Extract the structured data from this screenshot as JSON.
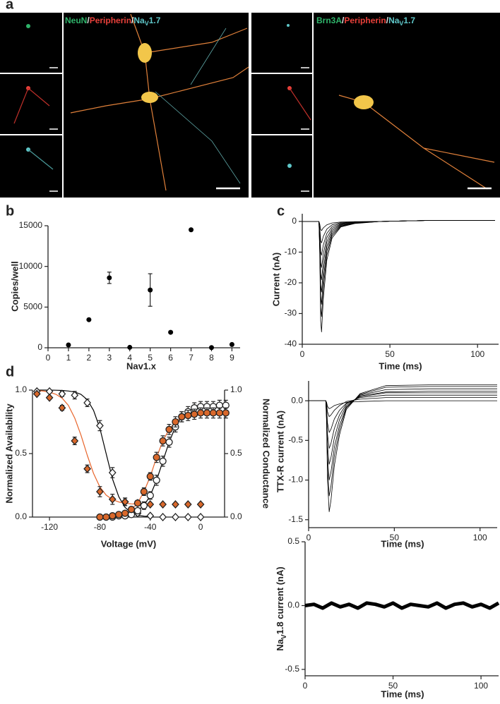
{
  "panels": [
    "a",
    "b",
    "c",
    "d"
  ],
  "panel_a": {
    "titles": [
      [
        "NeuN",
        "/",
        "Peripherin",
        "/",
        "Na",
        "V",
        "1.7"
      ],
      [
        "Brn3A",
        "/",
        "Peripherin",
        "/",
        "Na",
        "V",
        "1.7"
      ]
    ]
  },
  "chart_data": [
    {
      "type": "scatter",
      "xlabel": "Nav1.x",
      "ylabel": "Copies/well",
      "color": "#000000",
      "x": [
        1,
        2,
        3,
        4,
        5,
        6,
        7,
        8,
        9
      ],
      "values": [
        350,
        3450,
        8600,
        50,
        7100,
        1900,
        14500,
        20,
        400
      ],
      "errors": [
        null,
        null,
        700,
        null,
        2000,
        null,
        null,
        null,
        null
      ],
      "xlim": [
        0,
        9.4
      ],
      "ylim": [
        0,
        15000
      ],
      "xticks": [
        0,
        1,
        2,
        3,
        4,
        5,
        6,
        7,
        8,
        9
      ],
      "yticks": [
        0,
        5000,
        10000,
        15000
      ]
    },
    {
      "type": "line",
      "xlabel": "Time (ms)",
      "ylabel": "Current (nA)",
      "x": [
        0,
        9.5,
        10,
        10.5,
        11,
        12,
        14,
        17,
        22,
        30,
        45,
        70,
        110
      ],
      "series": [
        {
          "color": "#000000",
          "values": [
            0,
            0,
            -10.8,
            -32.4,
            -36,
            -25.2,
            -12.6,
            -5.4,
            -1.8,
            -0.7,
            0,
            0.3,
            0.3
          ]
        },
        {
          "color": "#000000",
          "values": [
            0,
            0,
            -9.3,
            -27.9,
            -31,
            -21.7,
            -10.9,
            -4.7,
            -1.6,
            -0.6,
            0,
            0.3,
            0.3
          ]
        },
        {
          "color": "#000000",
          "values": [
            0,
            0,
            -8.1,
            -24.3,
            -27,
            -18.9,
            -9.5,
            -4.1,
            -1.4,
            -0.5,
            0,
            0.3,
            0.3
          ]
        },
        {
          "color": "#000000",
          "values": [
            0,
            0,
            -6.9,
            -20.7,
            -23,
            -16.1,
            -8.1,
            -3.5,
            -1.2,
            -0.5,
            0,
            0.3,
            0.3
          ]
        },
        {
          "color": "#000000",
          "values": [
            0,
            0,
            -5.7,
            -17.1,
            -19,
            -13.3,
            -6.7,
            -2.9,
            -1,
            -0.4,
            0,
            0.3,
            0.3
          ]
        },
        {
          "color": "#000000",
          "values": [
            0,
            0,
            -4.5,
            -13.5,
            -15,
            -10.5,
            -5.3,
            -2.3,
            -0.8,
            -0.3,
            0,
            0.3,
            0.3
          ]
        },
        {
          "color": "#000000",
          "values": [
            0,
            0,
            -3.3,
            -9.9,
            -11,
            -7.7,
            -3.9,
            -1.7,
            -0.6,
            -0.2,
            0,
            0.3,
            0.3
          ]
        },
        {
          "color": "#000000",
          "values": [
            0,
            0,
            -2.1,
            -6.3,
            -7,
            -4.9,
            -2.5,
            -1.1,
            -0.4,
            -0.1,
            0,
            0.3,
            0.3
          ]
        },
        {
          "color": "#000000",
          "values": [
            0,
            0,
            -0.9,
            -2.7,
            -3,
            -2.1,
            -1.1,
            -0.5,
            -0.2,
            -0.1,
            0,
            0.3,
            0.3
          ]
        }
      ],
      "xlim": [
        0,
        112
      ],
      "ylim": [
        -40,
        2.5
      ],
      "xticks": [
        0,
        50,
        100
      ],
      "yticks": [
        0,
        -10,
        -20,
        -30,
        -40
      ]
    },
    {
      "type": "line",
      "xlabel": "Time (ms)",
      "ylabel": "TTX-R current (nA)",
      "x": [
        0,
        10,
        10.5,
        11,
        12,
        13,
        15,
        18,
        22,
        30,
        45,
        70,
        110
      ],
      "series": [
        {
          "color": "#000000",
          "values": [
            0,
            0,
            -0.28,
            -0.98,
            -1.4,
            -1.26,
            -0.82,
            -0.43,
            -0.11,
            0.09,
            0.19,
            0.2,
            0.2
          ]
        },
        {
          "color": "#000000",
          "values": [
            0,
            0,
            -0.24,
            -0.84,
            -1.2,
            -1.08,
            -0.7,
            -0.37,
            -0.09,
            0.08,
            0.17,
            0.18,
            0.18
          ]
        },
        {
          "color": "#000000",
          "values": [
            0,
            0,
            -0.2,
            -0.7,
            -1,
            -0.9,
            -0.59,
            -0.31,
            -0.08,
            0.07,
            0.14,
            0.15,
            0.15
          ]
        },
        {
          "color": "#000000",
          "values": [
            0,
            0,
            -0.16,
            -0.56,
            -0.8,
            -0.72,
            -0.47,
            -0.24,
            -0.06,
            0.06,
            0.11,
            0.12,
            0.12
          ]
        },
        {
          "color": "#000000",
          "values": [
            0,
            0,
            -0.12,
            -0.42,
            -0.6,
            -0.54,
            -0.35,
            -0.18,
            -0.04,
            0.05,
            0.1,
            0.1,
            0.1
          ]
        },
        {
          "color": "#000000",
          "values": [
            0,
            0,
            -0.08,
            -0.28,
            -0.4,
            -0.36,
            -0.23,
            -0.12,
            -0.03,
            0.04,
            0.07,
            0.07,
            0.07
          ]
        },
        {
          "color": "#000000",
          "values": [
            0,
            0,
            -0.04,
            -0.14,
            -0.2,
            -0.18,
            -0.12,
            -0.06,
            -0.01,
            0.02,
            0.04,
            0.04,
            0.04
          ]
        },
        {
          "color": "#000000",
          "values": [
            0,
            0,
            -0.02,
            -0.07,
            -0.1,
            -0.09,
            -0.06,
            -0.04,
            -0.02,
            -0.01,
            0,
            0,
            0
          ]
        }
      ],
      "xlim": [
        0,
        110
      ],
      "ylim": [
        -1.6,
        0.25
      ],
      "xticks": [
        0,
        50,
        100
      ],
      "yticks": [
        {
          "value": 0,
          "label": "0.0"
        },
        -0.5,
        {
          "value": -1,
          "label": "-1.0"
        },
        -1.5
      ]
    },
    {
      "type": "line",
      "xlabel": "Time (ms)",
      "ylabel": [
        "Na",
        "V",
        "1.8 current (nA)"
      ],
      "x": [
        0,
        5,
        10,
        15,
        20,
        25,
        30,
        35,
        40,
        45,
        50,
        55,
        60,
        65,
        70,
        75,
        80,
        85,
        90,
        95,
        100,
        105,
        110
      ],
      "series": [
        {
          "color": "#000000",
          "values": [
            0,
            0.01,
            -0.02,
            0.02,
            -0.01,
            0.01,
            -0.02,
            0.02,
            0.01,
            -0.01,
            0.02,
            -0.02,
            0.01,
            0,
            -0.01,
            0.02,
            -0.02,
            0.01,
            0.02,
            -0.01,
            0.01,
            -0.02,
            0.02
          ]
        }
      ],
      "xlim": [
        0,
        110
      ],
      "ylim": [
        -0.55,
        0.5
      ],
      "xticks": [
        0,
        50,
        100
      ],
      "yticks": [
        0.5,
        {
          "value": 0,
          "label": "0.0"
        },
        -0.5
      ]
    },
    {
      "type": "scatter",
      "xlabel": "Voltage (mV)",
      "ylabel": "Normalized Availability",
      "y2label": "Normalized Conductance",
      "series": [
        {
          "marker": "diamond",
          "color": "#ffffff",
          "x": [
            -130,
            -120,
            -110,
            -100,
            -90,
            -80,
            -70,
            -60,
            -50,
            -40,
            -30,
            -20,
            -10,
            0
          ],
          "values": [
            0.99,
            0.99,
            0.97,
            0.96,
            0.9,
            0.72,
            0.35,
            0.12,
            0.03,
            0.01,
            0,
            0,
            0,
            0
          ],
          "errors": [
            0.01,
            0.01,
            0.02,
            0.03,
            0.03,
            0.04,
            0.04,
            0.03,
            0.02,
            0.01,
            0.01,
            0.01,
            0.01,
            0.01
          ]
        },
        {
          "marker": "diamond",
          "color": "#d9682b",
          "x": [
            -130,
            -120,
            -110,
            -100,
            -90,
            -80,
            -70,
            -60,
            -50,
            -40,
            -30,
            -20,
            -10,
            0
          ],
          "values": [
            0.97,
            0.94,
            0.86,
            0.6,
            0.38,
            0.2,
            0.14,
            0.12,
            0.11,
            0.1,
            0.1,
            0.1,
            0.1,
            0.1
          ],
          "errors": [
            0.01,
            0.01,
            0.02,
            0.03,
            0.03,
            0.04,
            0.04,
            0.03,
            0.02,
            0.01,
            0.01,
            0.01,
            0.01,
            0.01
          ]
        },
        {
          "marker": "circle",
          "color": "#ffffff",
          "axis": "y2",
          "x": [
            -80,
            -75,
            -70,
            -65,
            -60,
            -55,
            -50,
            -45,
            -40,
            -35,
            -30,
            -25,
            -20,
            -15,
            -10,
            -5,
            0,
            5,
            10,
            15,
            20
          ],
          "values": [
            0,
            0,
            0,
            0.01,
            0.01,
            0.02,
            0.05,
            0.09,
            0.17,
            0.29,
            0.44,
            0.59,
            0.71,
            0.79,
            0.83,
            0.86,
            0.87,
            0.87,
            0.87,
            0.88,
            0.88
          ],
          "errors": [
            0.01,
            0.01,
            0.01,
            0.01,
            0.01,
            0.02,
            0.02,
            0.03,
            0.03,
            0.04,
            0.04,
            0.04,
            0.04,
            0.04,
            0.04,
            0.04,
            0.04,
            0.04,
            0.04,
            0.04,
            0.04
          ]
        },
        {
          "marker": "circle",
          "color": "#d9682b",
          "axis": "y2",
          "x": [
            -80,
            -75,
            -70,
            -65,
            -60,
            -55,
            -50,
            -45,
            -40,
            -35,
            -30,
            -25,
            -20,
            -15,
            -10,
            -5,
            0,
            5,
            10,
            15,
            20
          ],
          "values": [
            0,
            0,
            0.01,
            0.02,
            0.03,
            0.06,
            0.11,
            0.2,
            0.32,
            0.47,
            0.6,
            0.69,
            0.75,
            0.79,
            0.8,
            0.81,
            0.82,
            0.82,
            0.82,
            0.82,
            0.82
          ],
          "errors": [
            0.01,
            0.01,
            0.01,
            0.01,
            0.01,
            0.02,
            0.02,
            0.03,
            0.03,
            0.04,
            0.04,
            0.04,
            0.04,
            0.04,
            0.04,
            0.04,
            0.04,
            0.04,
            0.04,
            0.04,
            0.04
          ]
        }
      ],
      "fits": [
        {
          "color": "#000000",
          "x": [
            -130,
            -125,
            -120,
            -115,
            -110,
            -105,
            -100,
            -95,
            -90,
            -85,
            -80,
            -75,
            -70,
            -65,
            -60,
            -55,
            -50,
            -45,
            -40
          ],
          "values": [
            1,
            1,
            1,
            0.999,
            0.997,
            0.993,
            0.985,
            0.966,
            0.924,
            0.84,
            0.7,
            0.5,
            0.3,
            0.16,
            0.076,
            0.034,
            0.015,
            0.007,
            0.003
          ]
        },
        {
          "color": "#e8642a",
          "x": [
            -130,
            -125,
            -120,
            -115,
            -110,
            -105,
            -100,
            -95,
            -90,
            -85,
            -80,
            -75,
            -70,
            -65,
            -60,
            -55,
            -50
          ],
          "values": [
            0.996,
            0.992,
            0.984,
            0.967,
            0.937,
            0.88,
            0.78,
            0.645,
            0.486,
            0.343,
            0.238,
            0.173,
            0.137,
            0.119,
            0.109,
            0.104,
            0.102
          ]
        },
        {
          "color": "#000000",
          "axis": "y2",
          "x": [
            -80,
            -75,
            -70,
            -65,
            -60,
            -55,
            -50,
            -45,
            -40,
            -35,
            -30,
            -25,
            -20,
            -15,
            -10,
            -5,
            0,
            5,
            10,
            15,
            20
          ],
          "values": [
            0,
            0,
            0,
            0.01,
            0.01,
            0.02,
            0.05,
            0.09,
            0.17,
            0.29,
            0.44,
            0.59,
            0.71,
            0.79,
            0.83,
            0.86,
            0.87,
            0.87,
            0.87,
            0.88,
            0.88
          ]
        },
        {
          "color": "#e8642a",
          "axis": "y2",
          "x": [
            -80,
            -75,
            -70,
            -65,
            -60,
            -55,
            -50,
            -45,
            -40,
            -35,
            -30,
            -25,
            -20,
            -15,
            -10,
            -5,
            0,
            5,
            10,
            15,
            20
          ],
          "values": [
            0,
            0,
            0.01,
            0.02,
            0.03,
            0.06,
            0.11,
            0.2,
            0.32,
            0.47,
            0.6,
            0.69,
            0.75,
            0.79,
            0.8,
            0.81,
            0.82,
            0.82,
            0.82,
            0.82,
            0.82
          ]
        }
      ],
      "xlim": [
        -133.5,
        19
      ],
      "ylim": [
        0,
        1
      ],
      "y2lim": [
        0,
        1
      ],
      "xticks": [
        -120,
        -80,
        -40,
        0
      ],
      "yticks": [
        {
          "value": 0,
          "label": "0.0"
        },
        0.5,
        {
          "value": 1,
          "label": "1.0"
        }
      ],
      "y2ticks": [
        {
          "value": 0,
          "label": "0.0"
        },
        0.5,
        {
          "value": 1,
          "label": "1.0"
        }
      ]
    }
  ]
}
